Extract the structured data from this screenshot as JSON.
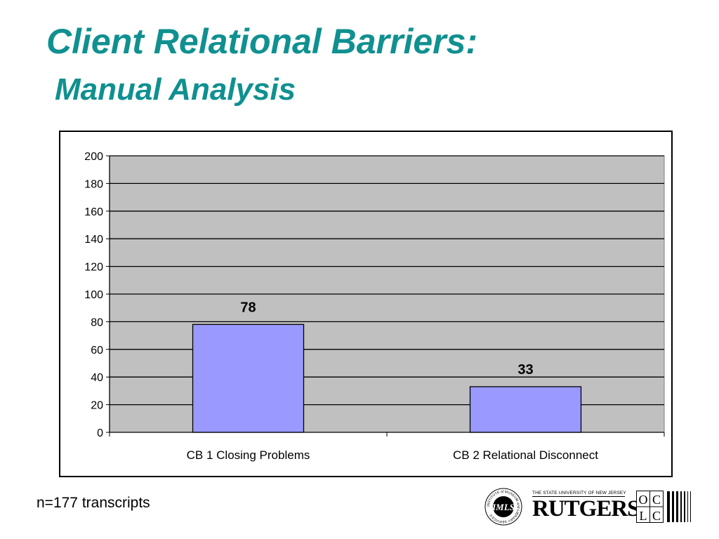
{
  "title": "Client Relational Barriers:",
  "subtitle": "Manual Analysis",
  "footnote": "n=177 transcripts",
  "logos": {
    "imls_text": "INSTITUTE of MUSEUM and LIBRARY SERVICES",
    "rutgers_small": "THE STATE UNIVERSITY OF NEW JERSEY",
    "rutgers_big": "RUTGERS",
    "oclc": "OCLC"
  },
  "colors": {
    "title": "#109090",
    "plot_background": "#c0c0c0",
    "bar_fill": "#9999ff"
  },
  "chart_data": {
    "type": "bar",
    "categories": [
      "CB 1 Closing Problems",
      "CB 2 Relational Disconnect"
    ],
    "values": [
      78,
      33
    ],
    "data_labels": [
      "78",
      "33"
    ],
    "ylim": [
      0,
      200
    ],
    "y_ticks": [
      0,
      20,
      40,
      60,
      80,
      100,
      120,
      140,
      160,
      180,
      200
    ],
    "grid": true,
    "legend": "none",
    "xlabel": "",
    "ylabel": ""
  }
}
